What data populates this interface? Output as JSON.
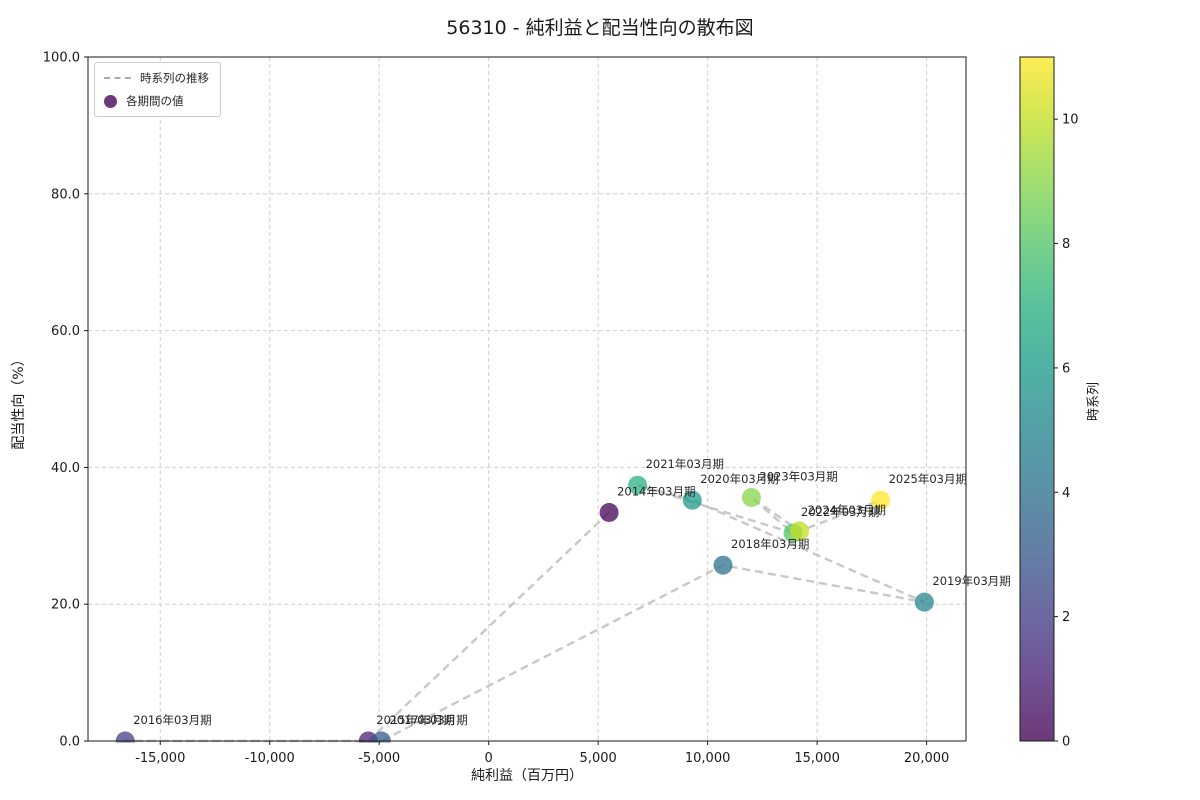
{
  "figure": {
    "title": "56310 - 純利益と配当性向の散布図"
  },
  "chart_data": {
    "type": "scatter",
    "title": "56310 - 純利益と配当性向の散布図",
    "xlabel": "純利益（百万円）",
    "ylabel": "配当性向（%）",
    "xlim": [
      -18300,
      21800
    ],
    "ylim": [
      0,
      100
    ],
    "grid": true,
    "xticks": [
      -15000,
      -10000,
      -5000,
      0,
      5000,
      10000,
      15000,
      20000
    ],
    "xtick_labels": [
      "-15,000",
      "-10,000",
      "-5,000",
      "0",
      "5,000",
      "10,000",
      "15,000",
      "20,000"
    ],
    "yticks": [
      0,
      20,
      40,
      60,
      80,
      100
    ],
    "ytick_labels": [
      "0.0",
      "20.0",
      "40.0",
      "60.0",
      "80.0",
      "100.0"
    ],
    "legend": {
      "position": "upper-left",
      "trend_label": "時系列の推移",
      "points_label": "各期間の値"
    },
    "marker": {
      "size": 9.5,
      "opacity": 0.75
    },
    "trend_line": {
      "color": "#c8c8c8",
      "style": "dashed"
    },
    "series": [
      {
        "name": "各期間の値",
        "points": [
          {
            "label": "2014年03月期",
            "x": 5500,
            "y": 33.4,
            "t": 0,
            "color": "#440154"
          },
          {
            "label": "2015年03月期",
            "x": -5500,
            "y": 0.0,
            "t": 1,
            "color": "#482173"
          },
          {
            "label": "2016年03月期",
            "x": -16600,
            "y": 0.0,
            "t": 2,
            "color": "#433e85"
          },
          {
            "label": "2017年03月期",
            "x": -4900,
            "y": 0.0,
            "t": 3,
            "color": "#38598c"
          },
          {
            "label": "2018年03月期",
            "x": 10700,
            "y": 25.7,
            "t": 4,
            "color": "#2d708e"
          },
          {
            "label": "2019年03月期",
            "x": 19900,
            "y": 20.3,
            "t": 5,
            "color": "#25858e"
          },
          {
            "label": "2020年03月期",
            "x": 9300,
            "y": 35.2,
            "t": 6,
            "color": "#1e9b8a"
          },
          {
            "label": "2021年03月期",
            "x": 6800,
            "y": 37.4,
            "t": 7,
            "color": "#2ab07f"
          },
          {
            "label": "2022年03月期",
            "x": 13900,
            "y": 30.4,
            "t": 8,
            "color": "#52c569"
          },
          {
            "label": "2023年03月期",
            "x": 12000,
            "y": 35.6,
            "t": 9,
            "color": "#86d549"
          },
          {
            "label": "2024年03月期",
            "x": 14200,
            "y": 30.7,
            "t": 10,
            "color": "#c2df23"
          },
          {
            "label": "2025年03月期",
            "x": 17900,
            "y": 35.2,
            "t": 11,
            "color": "#fde725"
          }
        ]
      }
    ],
    "colorbar": {
      "label": "時系列",
      "min": 0,
      "max": 11,
      "ticks": [
        0,
        2,
        4,
        6,
        8,
        10
      ],
      "colormap": "viridis",
      "colors": [
        "#440154",
        "#482173",
        "#433e85",
        "#38598c",
        "#2d708e",
        "#25858e",
        "#1e9b8a",
        "#2ab07f",
        "#52c569",
        "#86d549",
        "#c2df23",
        "#fde725"
      ]
    }
  }
}
